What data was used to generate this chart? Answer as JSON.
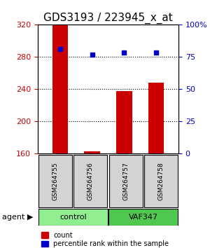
{
  "title": "GDS3193 / 223945_x_at",
  "samples": [
    "GSM264755",
    "GSM264756",
    "GSM264757",
    "GSM264758"
  ],
  "groups": [
    "control",
    "control",
    "VAF347",
    "VAF347"
  ],
  "bar_values": [
    320,
    163,
    238,
    248
  ],
  "bar_bottom": 160,
  "dot_values": [
    290,
    283,
    286,
    286
  ],
  "ylim": [
    160,
    320
  ],
  "yticks_left": [
    160,
    200,
    240,
    280,
    320
  ],
  "yticks_right": [
    0,
    25,
    50,
    75,
    100
  ],
  "bar_color": "#cc0000",
  "dot_color": "#0000cc",
  "grid_color": "#000000",
  "group_colors": {
    "control": "#90ee90",
    "VAF347": "#50c850"
  },
  "group_label": "agent",
  "legend_count": "count",
  "legend_pct": "percentile rank within the sample",
  "title_fontsize": 11,
  "label_fontsize": 8,
  "tick_fontsize": 8
}
